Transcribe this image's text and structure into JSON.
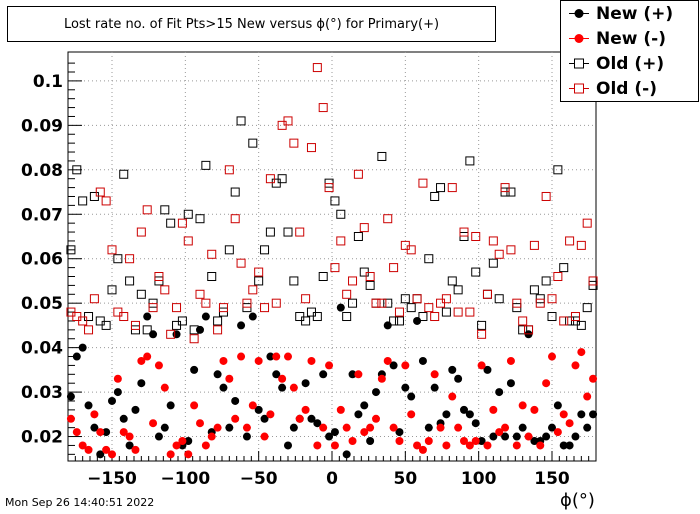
{
  "title": "Lost rate no. of Fit Pts>15 New versus ϕ(°) for Primary(+)",
  "timestamp": "Mon Sep 26 14:40:51 2022",
  "colors": {
    "new_plus": "#000000",
    "new_minus": "#ff0000",
    "old_plus": "#000000",
    "old_minus": "#cc0000"
  },
  "chart_data": {
    "type": "scatter",
    "title": "Lost rate no. of Fit Pts>15 New versus ϕ(°) for Primary(+)",
    "xlabel": "ϕ(°)",
    "ylabel": "",
    "xlim": [
      -180,
      180
    ],
    "ylim": [
      0.0145,
      0.1065
    ],
    "grid": true,
    "legend_position": "top-right",
    "xticks": [
      -150,
      -100,
      -50,
      0,
      50,
      100,
      150
    ],
    "yticks": [
      0.02,
      0.03,
      0.04,
      0.05,
      0.06,
      0.07,
      0.08,
      0.09,
      0.1
    ],
    "xtick_labels": [
      "−150",
      "−100",
      "−50",
      "0",
      "50",
      "100",
      "150"
    ],
    "ytick_labels": [
      "0.02",
      "0.03",
      "0.04",
      "0.05",
      "0.06",
      "0.07",
      "0.08",
      "0.09",
      "0.1"
    ],
    "x": [
      -178,
      -174,
      -170,
      -166,
      -162,
      -158,
      -154,
      -150,
      -146,
      -142,
      -138,
      -134,
      -130,
      -126,
      -122,
      -118,
      -114,
      -110,
      -106,
      -102,
      -98,
      -94,
      -90,
      -86,
      -82,
      -78,
      -74,
      -70,
      -66,
      -62,
      -58,
      -54,
      -50,
      -46,
      -42,
      -38,
      -34,
      -30,
      -26,
      -22,
      -18,
      -14,
      -10,
      -6,
      -2,
      2,
      6,
      10,
      14,
      18,
      22,
      26,
      30,
      34,
      38,
      42,
      46,
      50,
      54,
      58,
      62,
      66,
      70,
      74,
      78,
      82,
      86,
      90,
      94,
      98,
      102,
      106,
      110,
      114,
      118,
      122,
      126,
      130,
      134,
      138,
      142,
      146,
      150,
      154,
      158,
      162,
      166,
      170,
      174,
      178
    ],
    "series": [
      {
        "name": "New (+)",
        "marker": "filled-circle",
        "color": "#000000",
        "values": [
          0.029,
          0.038,
          0.04,
          0.027,
          0.022,
          0.016,
          0.021,
          0.028,
          0.03,
          0.024,
          0.018,
          0.026,
          0.032,
          0.047,
          0.043,
          0.02,
          0.022,
          0.027,
          0.043,
          0.018,
          0.019,
          0.035,
          0.044,
          0.047,
          0.021,
          0.034,
          0.031,
          0.022,
          0.028,
          0.045,
          0.02,
          0.047,
          0.026,
          0.024,
          0.038,
          0.034,
          0.031,
          0.018,
          0.022,
          0.024,
          0.032,
          0.024,
          0.023,
          0.034,
          0.02,
          0.021,
          0.049,
          0.016,
          0.034,
          0.025,
          0.027,
          0.019,
          0.03,
          0.034,
          0.045,
          0.036,
          0.021,
          0.031,
          0.029,
          0.046,
          0.037,
          0.022,
          0.031,
          0.023,
          0.025,
          0.035,
          0.033,
          0.026,
          0.025,
          0.023,
          0.019,
          0.035,
          0.02,
          0.03,
          0.02,
          0.032,
          0.02,
          0.022,
          0.043,
          0.019,
          0.019,
          0.02,
          0.022,
          0.027,
          0.018,
          0.018,
          0.02,
          0.025,
          0.022,
          0.025
        ]
      },
      {
        "name": "New (-)",
        "marker": "filled-circle",
        "color": "#ff0000",
        "values": [
          0.024,
          0.021,
          0.018,
          0.017,
          0.025,
          0.021,
          0.017,
          0.016,
          0.033,
          0.021,
          0.02,
          0.017,
          0.037,
          0.038,
          0.023,
          0.036,
          0.031,
          0.016,
          0.018,
          0.019,
          0.016,
          0.027,
          0.023,
          0.018,
          0.02,
          0.022,
          0.037,
          0.033,
          0.024,
          0.038,
          0.022,
          0.027,
          0.037,
          0.02,
          0.025,
          0.038,
          0.033,
          0.038,
          0.031,
          0.024,
          0.026,
          0.037,
          0.018,
          0.022,
          0.036,
          0.018,
          0.026,
          0.022,
          0.019,
          0.034,
          0.021,
          0.022,
          0.024,
          0.033,
          0.037,
          0.022,
          0.019,
          0.036,
          0.025,
          0.018,
          0.017,
          0.019,
          0.034,
          0.022,
          0.018,
          0.029,
          0.022,
          0.019,
          0.018,
          0.019,
          0.036,
          0.018,
          0.026,
          0.021,
          0.022,
          0.037,
          0.018,
          0.027,
          0.02,
          0.026,
          0.018,
          0.032,
          0.038,
          0.021,
          0.025,
          0.023,
          0.036,
          0.039,
          0.029,
          0.033
        ]
      },
      {
        "name": "Old (+)",
        "marker": "open-square",
        "color": "#000000",
        "values": [
          0.062,
          0.08,
          0.073,
          0.047,
          0.074,
          0.046,
          0.045,
          0.053,
          0.06,
          0.079,
          0.055,
          0.044,
          0.052,
          0.044,
          0.05,
          0.055,
          0.071,
          0.068,
          0.045,
          0.046,
          0.07,
          0.044,
          0.069,
          0.081,
          0.056,
          0.046,
          0.048,
          0.062,
          0.075,
          0.091,
          0.049,
          0.086,
          0.055,
          0.062,
          0.066,
          0.077,
          0.078,
          0.066,
          0.055,
          0.047,
          0.046,
          0.048,
          0.047,
          0.056,
          0.077,
          0.073,
          0.07,
          0.047,
          0.05,
          0.065,
          0.057,
          0.054,
          0.05,
          0.083,
          0.05,
          0.046,
          0.046,
          0.051,
          0.049,
          0.051,
          0.047,
          0.06,
          0.074,
          0.076,
          0.048,
          0.055,
          0.053,
          0.065,
          0.082,
          0.057,
          0.045,
          0.052,
          0.059,
          0.051,
          0.075,
          0.075,
          0.049,
          0.044,
          0.044,
          0.053,
          0.051,
          0.055,
          0.047,
          0.08,
          0.058,
          0.046,
          0.046,
          0.045,
          0.049,
          0.054
        ]
      },
      {
        "name": "Old (-)",
        "marker": "open-square",
        "color": "#cc0000",
        "values": [
          0.048,
          0.047,
          0.046,
          0.044,
          0.051,
          0.075,
          0.073,
          0.062,
          0.048,
          0.047,
          0.06,
          0.045,
          0.066,
          0.071,
          0.049,
          0.056,
          0.053,
          0.043,
          0.049,
          0.068,
          0.064,
          0.042,
          0.052,
          0.05,
          0.061,
          0.044,
          0.049,
          0.08,
          0.069,
          0.059,
          0.05,
          0.053,
          0.057,
          0.049,
          0.078,
          0.05,
          0.09,
          0.091,
          0.086,
          0.066,
          0.051,
          0.085,
          0.103,
          0.094,
          0.076,
          0.058,
          0.064,
          0.052,
          0.055,
          0.079,
          0.067,
          0.056,
          0.05,
          0.05,
          0.069,
          0.058,
          0.048,
          0.063,
          0.062,
          0.051,
          0.077,
          0.049,
          0.047,
          0.05,
          0.051,
          0.076,
          0.048,
          0.066,
          0.048,
          0.065,
          0.043,
          0.052,
          0.064,
          0.061,
          0.076,
          0.062,
          0.05,
          0.046,
          0.044,
          0.063,
          0.05,
          0.074,
          0.051,
          0.056,
          0.046,
          0.064,
          0.047,
          0.063,
          0.068,
          0.055
        ]
      }
    ]
  }
}
